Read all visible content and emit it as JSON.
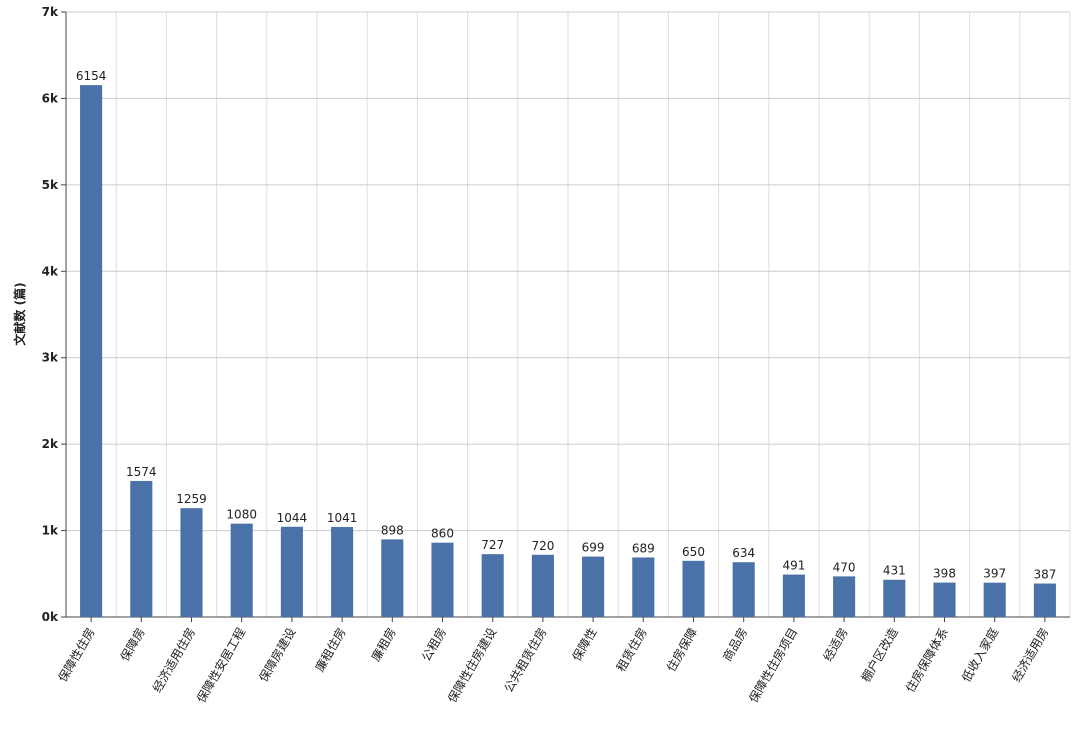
{
  "chart_data": {
    "type": "bar",
    "y_label": "文献数 (篇)",
    "categories": [
      "保障性住房",
      "保障房",
      "经济适用住房",
      "保障性安居工程",
      "保障房建设",
      "廉租住房",
      "廉租房",
      "公租房",
      "保障性住房建设",
      "公共租赁住房",
      "保障性",
      "租赁住房",
      "住房保障",
      "商品房",
      "保障性住房项目",
      "经适房",
      "棚户区改造",
      "住房保障体系",
      "低收入家庭",
      "经济适用房"
    ],
    "values": [
      6154,
      1574,
      1259,
      1080,
      1044,
      1041,
      898,
      860,
      727,
      720,
      699,
      689,
      650,
      634,
      491,
      470,
      431,
      398,
      397,
      387
    ],
    "color": "#4a72a8",
    "ylim": [
      0,
      7000
    ],
    "yticks": [
      {
        "value": 0,
        "label": "0k"
      },
      {
        "value": 1000,
        "label": "1k"
      },
      {
        "value": 2000,
        "label": "2k"
      },
      {
        "value": 3000,
        "label": "3k"
      },
      {
        "value": 4000,
        "label": "4k"
      },
      {
        "value": 5000,
        "label": "5k"
      },
      {
        "value": 6000,
        "label": "6k"
      },
      {
        "value": 7000,
        "label": "7k"
      }
    ],
    "grid": true
  }
}
